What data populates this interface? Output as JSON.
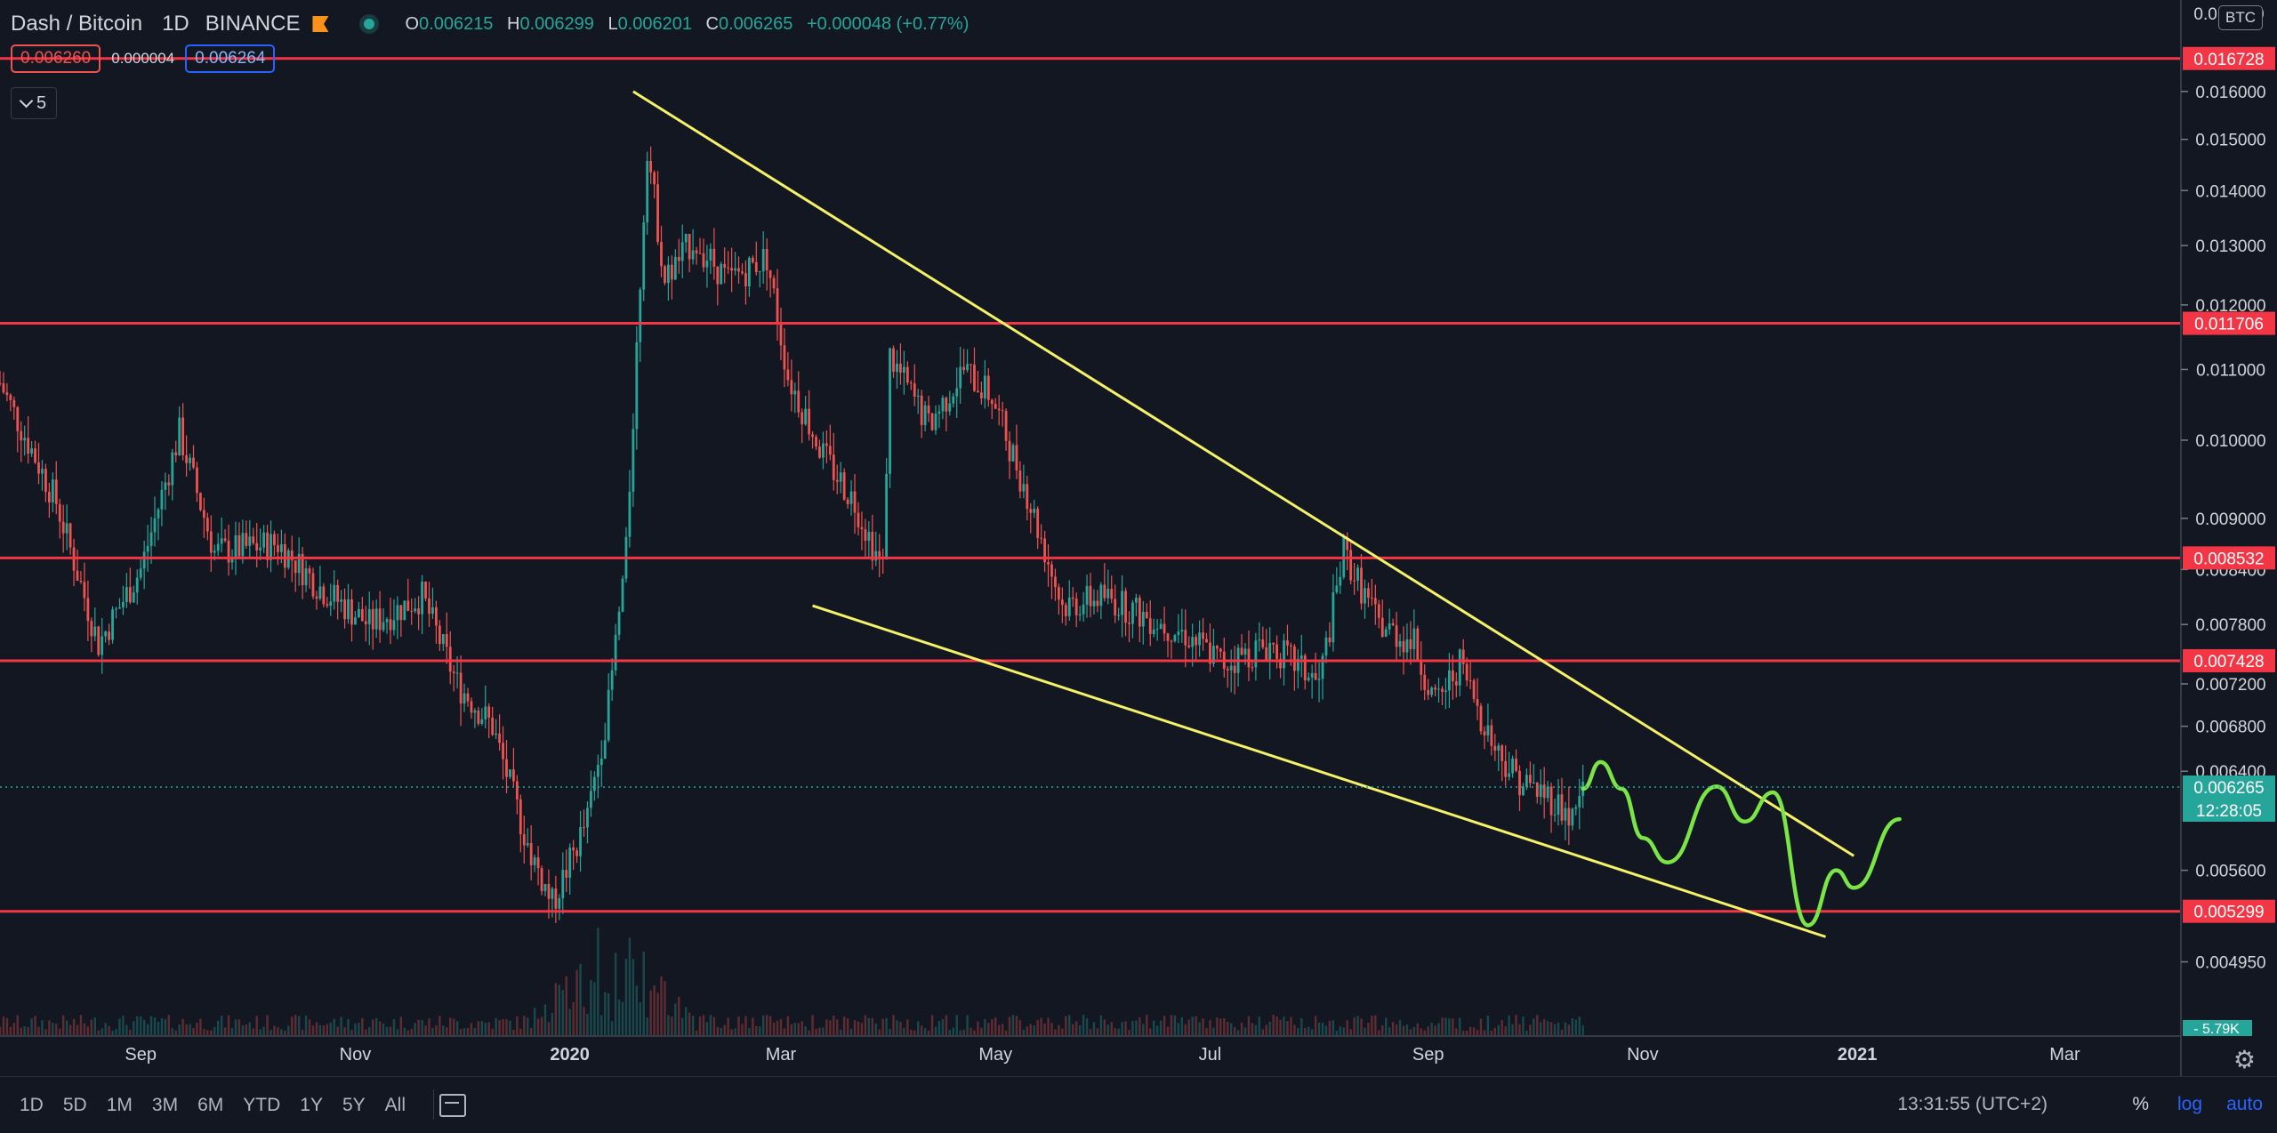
{
  "header": {
    "symbol": "Dash / Bitcoin",
    "interval": "1D",
    "exchange": "BINANCE",
    "ohlc": [
      {
        "k": "O",
        "v": "0.006215"
      },
      {
        "k": "H",
        "v": "0.006299"
      },
      {
        "k": "L",
        "v": "0.006201"
      },
      {
        "k": "C",
        "v": "0.006265"
      },
      {
        "k": "",
        "v": "+0.000048 (+0.77%)"
      }
    ],
    "sell_price": "0.006260",
    "spread": "0.000004",
    "buy_price": "0.006264",
    "collapsed_count": "5",
    "currency": "BTC"
  },
  "colors": {
    "up": "#26a69a",
    "down": "#ef5350",
    "level": "#f23645",
    "trend": "#f5f26a",
    "projection": "#7be548",
    "background": "#131722"
  },
  "chart_data": {
    "type": "candlestick",
    "interval": "1D",
    "yscale": "log",
    "ylim": [
      0.00456,
      0.0181
    ],
    "xlim": [
      "2019-07-23",
      "2021-04-03"
    ],
    "x_ticks": [
      {
        "date": "2019-09-01",
        "label": "Sep"
      },
      {
        "date": "2019-11-01",
        "label": "Nov"
      },
      {
        "date": "2020-01-01",
        "label": "2020",
        "bold": true
      },
      {
        "date": "2020-03-01",
        "label": "Mar"
      },
      {
        "date": "2020-05-01",
        "label": "May"
      },
      {
        "date": "2020-07-01",
        "label": "Jul"
      },
      {
        "date": "2020-09-01",
        "label": "Sep"
      },
      {
        "date": "2020-11-01",
        "label": "Nov"
      },
      {
        "date": "2021-01-01",
        "label": "2021",
        "bold": true
      },
      {
        "date": "2021-03-01",
        "label": "Mar"
      }
    ],
    "y_ticks": [
      "0.016000",
      "0.015000",
      "0.014000",
      "0.013000",
      "0.012000",
      "0.011000",
      "0.010000",
      "0.009000",
      "0.008400",
      "0.007800",
      "0.007200",
      "0.006800",
      "0.006400",
      "0.005600",
      "0.004950"
    ],
    "top_tick_partial": "0.017000",
    "close_path": [
      [
        "2019-07-23",
        0.0108
      ],
      [
        "2019-08-08",
        0.0092
      ],
      [
        "2019-08-20",
        0.0076
      ],
      [
        "2019-09-01",
        0.0084
      ],
      [
        "2019-09-12",
        0.0101
      ],
      [
        "2019-09-22",
        0.0086
      ],
      [
        "2019-10-10",
        0.0087
      ],
      [
        "2019-10-22",
        0.0082
      ],
      [
        "2019-11-05",
        0.0078
      ],
      [
        "2019-11-20",
        0.0081
      ],
      [
        "2019-11-30",
        0.0072
      ],
      [
        "2019-12-10",
        0.0068
      ],
      [
        "2019-12-20",
        0.0058
      ],
      [
        "2019-12-27",
        0.00535
      ],
      [
        "2020-01-06",
        0.006
      ],
      [
        "2020-01-12",
        0.007
      ],
      [
        "2020-01-17",
        0.0086
      ],
      [
        "2020-01-23",
        0.0149
      ],
      [
        "2020-01-28",
        0.0124
      ],
      [
        "2020-02-05",
        0.0131
      ],
      [
        "2020-02-15",
        0.0124
      ],
      [
        "2020-02-26",
        0.0128
      ],
      [
        "2020-03-03",
        0.0109
      ],
      [
        "2020-03-13",
        0.0098
      ],
      [
        "2020-03-22",
        0.0092
      ],
      [
        "2020-03-30",
        0.0084
      ],
      [
        "2020-04-01",
        0.0112
      ],
      [
        "2020-04-12",
        0.0102
      ],
      [
        "2020-04-22",
        0.011
      ],
      [
        "2020-04-30",
        0.0106
      ],
      [
        "2020-05-10",
        0.0093
      ],
      [
        "2020-05-20",
        0.008
      ],
      [
        "2020-06-01",
        0.0081
      ],
      [
        "2020-06-12",
        0.0079
      ],
      [
        "2020-06-24",
        0.0077
      ],
      [
        "2020-07-05",
        0.0074
      ],
      [
        "2020-07-18",
        0.0076
      ],
      [
        "2020-08-01",
        0.0072
      ],
      [
        "2020-08-08",
        0.0086
      ],
      [
        "2020-08-18",
        0.0078
      ],
      [
        "2020-08-28",
        0.0076
      ],
      [
        "2020-09-03",
        0.007
      ],
      [
        "2020-09-10",
        0.0074
      ],
      [
        "2020-09-20",
        0.0066
      ],
      [
        "2020-09-28",
        0.0063
      ],
      [
        "2020-10-05",
        0.0062
      ],
      [
        "2020-10-12",
        0.006
      ],
      [
        "2020-10-15",
        0.006265
      ]
    ],
    "last_price": "0.006265",
    "last_price_countdown": "12:28:05",
    "volume": {
      "peak_date": "2020-01-12",
      "last_label": "5.79K"
    },
    "horizontal_levels": [
      "0.016728",
      "0.011706",
      "0.008532",
      "0.007428",
      "0.005299"
    ],
    "trendlines": [
      {
        "from": [
          "2020-01-19",
          0.016
        ],
        "to": [
          "2020-12-31",
          0.00571
        ]
      },
      {
        "from": [
          "2020-03-10",
          0.008
        ],
        "to": [
          "2020-12-23",
          0.00512
        ]
      }
    ],
    "projection_path": [
      [
        "2020-10-15",
        0.00625
      ],
      [
        "2020-10-20",
        0.00648
      ],
      [
        "2020-10-26",
        0.00625
      ],
      [
        "2020-11-01",
        0.00585
      ],
      [
        "2020-11-08",
        0.00566
      ],
      [
        "2020-11-22",
        0.00627
      ],
      [
        "2020-11-30",
        0.00598
      ],
      [
        "2020-12-08",
        0.00622
      ],
      [
        "2020-12-18",
        0.0052
      ],
      [
        "2020-12-26",
        0.0056
      ],
      [
        "2020-12-31",
        0.00547
      ],
      [
        "2021-01-13",
        0.006
      ]
    ]
  },
  "bottom_bar": {
    "ranges": [
      "1D",
      "5D",
      "1M",
      "3M",
      "6M",
      "YTD",
      "1Y",
      "5Y",
      "All"
    ],
    "clock": "13:31:55 (UTC+2)",
    "percent": "%",
    "log": "log",
    "auto": "auto"
  }
}
